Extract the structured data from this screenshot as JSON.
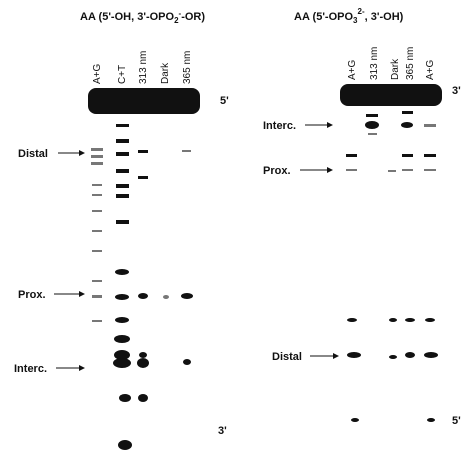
{
  "left_panel": {
    "title": {
      "prefix": "AA (5'-OH, 3'-OPO",
      "sub": "2",
      "sup": "-",
      "suffix": "-OR)"
    },
    "lanes": [
      "A+G",
      "C+T",
      "313 nm",
      "Dark",
      "365 nm"
    ],
    "end_top": "5'",
    "end_bottom": "3'",
    "markers": [
      "Distal",
      "Prox.",
      "Interc."
    ]
  },
  "right_panel": {
    "title": {
      "prefix": "AA (5'-OPO",
      "sub": "3",
      "sup": "2-",
      "suffix": ", 3'-OH)"
    },
    "lanes": [
      "A+G",
      "313 nm",
      "Dark",
      "365 nm",
      "A+G"
    ],
    "end_top": "3'",
    "end_bottom": "5'",
    "markers": [
      "Interc.",
      "Prox.",
      "Distal"
    ]
  }
}
